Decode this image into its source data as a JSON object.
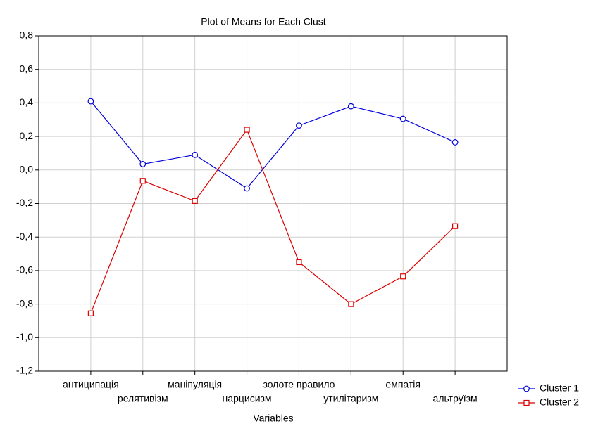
{
  "chart_data": {
    "type": "line",
    "title": "Plot of Means for Each Clust",
    "x_label": "Variables",
    "categories": [
      "антиципація",
      "релятивізм",
      "маніпуляція",
      "нарцисизм",
      "золоте правило",
      "утилітаризм",
      "емпатія",
      "альтруїзм"
    ],
    "series": [
      {
        "name": "Cluster  1",
        "color": "#0000dd",
        "marker": "circle",
        "values": [
          0.41,
          0.035,
          0.09,
          -0.11,
          0.265,
          0.38,
          0.305,
          0.165
        ]
      },
      {
        "name": "Cluster  2",
        "color": "#dd0000",
        "marker": "square",
        "values": [
          -0.855,
          -0.065,
          -0.185,
          0.24,
          -0.55,
          -0.8,
          -0.635,
          -0.335
        ]
      }
    ],
    "ylim": [
      -1.2,
      0.8
    ],
    "yticks": [
      {
        "value": -1.2,
        "label": "-1,2"
      },
      {
        "value": -1.0,
        "label": "-1,0"
      },
      {
        "value": -0.8,
        "label": "-0,8"
      },
      {
        "value": -0.6,
        "label": "-0,6"
      },
      {
        "value": -0.4,
        "label": "-0,4"
      },
      {
        "value": -0.2,
        "label": "-0,2"
      },
      {
        "value": 0,
        "label": "0,0"
      },
      {
        "value": 0.2,
        "label": "0,2"
      },
      {
        "value": 0.4,
        "label": "0,4"
      },
      {
        "value": 0.6,
        "label": "0,6"
      },
      {
        "value": 0.8,
        "label": "0,8"
      }
    ],
    "grid": true,
    "legend": "lower right"
  }
}
